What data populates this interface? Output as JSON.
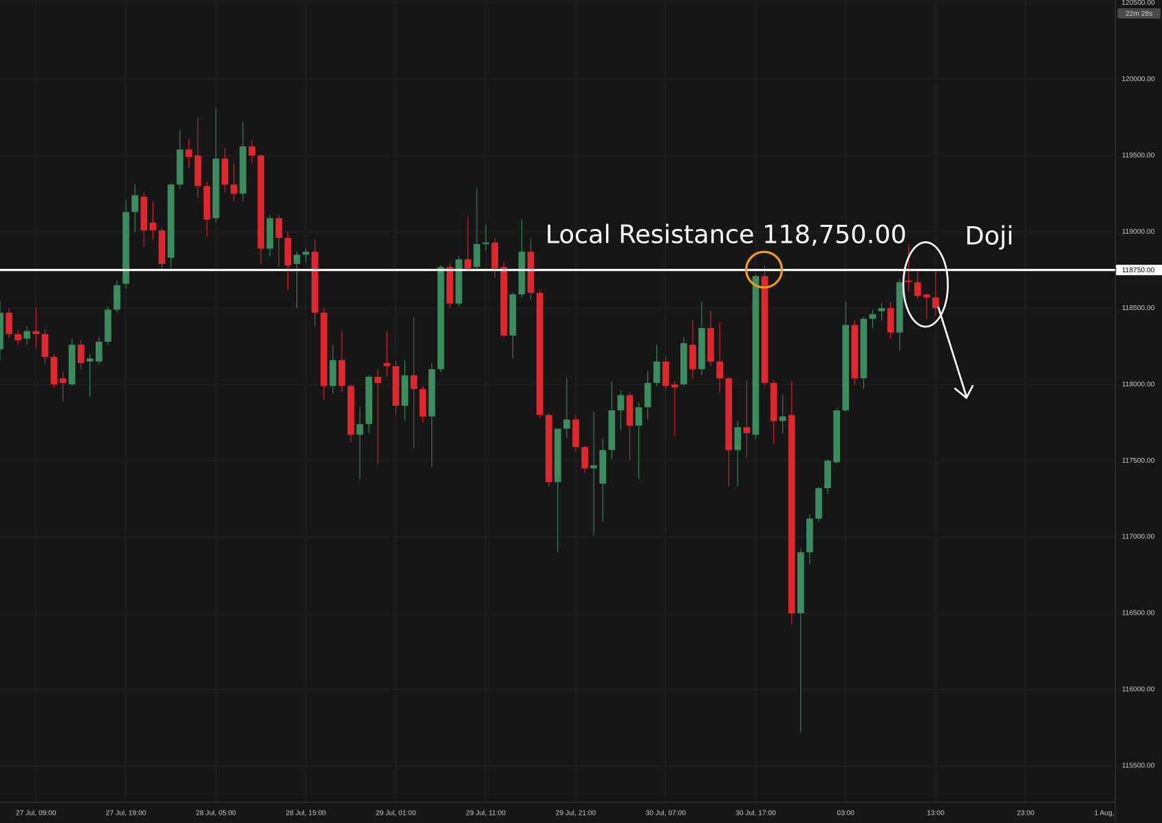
{
  "chart_data": {
    "type": "candlestick",
    "x": [
      "27 Jul, 05:00",
      "27 Jul, 06:00",
      "27 Jul, 07:00",
      "27 Jul, 08:00",
      "27 Jul, 09:00",
      "27 Jul, 10:00",
      "27 Jul, 11:00",
      "27 Jul, 12:00",
      "27 Jul, 13:00",
      "27 Jul, 14:00",
      "27 Jul, 15:00",
      "27 Jul, 16:00",
      "27 Jul, 17:00",
      "27 Jul, 18:00",
      "27 Jul, 19:00",
      "27 Jul, 20:00",
      "27 Jul, 21:00",
      "27 Jul, 22:00",
      "27 Jul, 23:00",
      "28 Jul, 00:00",
      "28 Jul, 01:00",
      "28 Jul, 02:00",
      "28 Jul, 03:00",
      "28 Jul, 04:00",
      "28 Jul, 05:00",
      "28 Jul, 06:00",
      "28 Jul, 07:00",
      "28 Jul, 08:00",
      "28 Jul, 09:00",
      "28 Jul, 10:00",
      "28 Jul, 11:00",
      "28 Jul, 12:00",
      "28 Jul, 13:00",
      "28 Jul, 14:00",
      "28 Jul, 15:00",
      "28 Jul, 16:00",
      "28 Jul, 17:00",
      "28 Jul, 18:00",
      "28 Jul, 19:00",
      "28 Jul, 20:00",
      "28 Jul, 21:00",
      "28 Jul, 22:00",
      "28 Jul, 23:00",
      "29 Jul, 00:00",
      "29 Jul, 01:00",
      "29 Jul, 02:00",
      "29 Jul, 03:00",
      "29 Jul, 04:00",
      "29 Jul, 05:00",
      "29 Jul, 06:00",
      "29 Jul, 07:00",
      "29 Jul, 08:00",
      "29 Jul, 09:00",
      "29 Jul, 10:00",
      "29 Jul, 11:00",
      "29 Jul, 12:00",
      "29 Jul, 13:00",
      "29 Jul, 14:00",
      "29 Jul, 15:00",
      "29 Jul, 16:00",
      "29 Jul, 17:00",
      "29 Jul, 18:00",
      "29 Jul, 19:00",
      "29 Jul, 20:00",
      "29 Jul, 21:00",
      "29 Jul, 22:00",
      "29 Jul, 23:00",
      "30 Jul, 00:00",
      "30 Jul, 01:00",
      "30 Jul, 02:00",
      "30 Jul, 03:00",
      "30 Jul, 04:00",
      "30 Jul, 05:00",
      "30 Jul, 06:00",
      "30 Jul, 07:00",
      "30 Jul, 08:00",
      "30 Jul, 09:00",
      "30 Jul, 10:00",
      "30 Jul, 11:00",
      "30 Jul, 12:00",
      "30 Jul, 13:00",
      "30 Jul, 14:00",
      "30 Jul, 15:00",
      "30 Jul, 16:00",
      "30 Jul, 17:00",
      "30 Jul, 18:00",
      "30 Jul, 19:00",
      "30 Jul, 20:00",
      "30 Jul, 21:00",
      "30 Jul, 22:00",
      "30 Jul, 23:00",
      "31 Jul, 00:00",
      "31 Jul, 01:00",
      "31 Jul, 02:00",
      "31 Jul, 03:00",
      "31 Jul, 04:00",
      "31 Jul, 05:00",
      "31 Jul, 06:00",
      "31 Jul, 07:00",
      "31 Jul, 08:00",
      "31 Jul, 09:00",
      "31 Jul, 10:00",
      "31 Jul, 11:00",
      "31 Jul, 12:00",
      "31 Jul, 13:00",
      "31 Jul, 14:00",
      "31 Jul, 15:00",
      "31 Jul, 16:00",
      "31 Jul, 17:00",
      "31 Jul, 18:00",
      "31 Jul, 19:00",
      "31 Jul, 20:00",
      "31 Jul, 21:00",
      "31 Jul, 22:00",
      "31 Jul, 23:00",
      "1 Aug, 00:00",
      "1 Aug, 01:00",
      "1 Aug, 02:00",
      "1 Aug, 03:00",
      "1 Aug, 04:00",
      "1 Aug, 05:00",
      "1 Aug, 06:00",
      "1 Aug, 07:00",
      "1 Aug, 08:00",
      "1 Aug, 09:00"
    ],
    "open": [
      118230,
      118470,
      118330,
      118300,
      118350,
      118330,
      118180,
      118040,
      118000,
      118260,
      118150,
      118150,
      118280,
      118490,
      118660,
      119130,
      119230,
      119060,
      119010,
      118830,
      119310,
      119540,
      119500,
      119300,
      119090,
      119480,
      119310,
      119250,
      119560,
      119500,
      118890,
      119090,
      118960,
      118790,
      118850,
      118870,
      118470,
      117990,
      118160,
      117990,
      117670,
      117740,
      118050,
      118140,
      118120,
      117860,
      118060,
      117970,
      117790,
      118100,
      118770,
      118530,
      118820,
      118770,
      118920,
      118930,
      118770,
      118320,
      118590,
      118870,
      118600,
      117800,
      117360,
      117710,
      117770,
      117590,
      117450,
      117350,
      117570,
      117830,
      117930,
      117730,
      117850,
      118010,
      118150,
      118000,
      118000,
      118260,
      118100,
      118370,
      118150,
      118040,
      117570,
      117720,
      117670,
      118710,
      118010,
      117760,
      117800,
      116500,
      116900,
      117120,
      117320,
      117490,
      117830,
      118390,
      118040,
      118430,
      118480,
      118500,
      118340,
      118680,
      118670,
      118590,
      118570,
      null,
      null,
      null,
      null,
      null,
      null,
      null,
      null,
      null,
      null,
      null,
      null,
      null,
      null,
      null,
      null,
      null,
      null,
      null,
      null
    ],
    "high": [
      118550,
      118500,
      118360,
      118380,
      118500,
      118360,
      118200,
      118080,
      118300,
      118290,
      118200,
      118310,
      118510,
      118680,
      119210,
      119310,
      119260,
      119200,
      119030,
      119320,
      119670,
      119610,
      119750,
      119330,
      119810,
      119550,
      119450,
      119720,
      119600,
      119510,
      119110,
      119110,
      119000,
      118870,
      118890,
      118950,
      118500,
      118260,
      118350,
      118000,
      117850,
      118060,
      118100,
      118350,
      118150,
      118160,
      118440,
      117990,
      118140,
      118780,
      118800,
      118840,
      119100,
      119290,
      119050,
      118960,
      118800,
      118600,
      119080,
      118960,
      118620,
      117810,
      117710,
      118040,
      117800,
      117600,
      117820,
      117650,
      118020,
      117960,
      117950,
      117880,
      118090,
      118260,
      118180,
      118020,
      118310,
      118420,
      118540,
      118480,
      118410,
      118050,
      117760,
      118030,
      118720,
      118780,
      118030,
      117930,
      118020,
      116920,
      117150,
      117330,
      117510,
      117840,
      118540,
      118420,
      118440,
      118490,
      118530,
      118540,
      118690,
      118920,
      118760,
      118600,
      118750,
      null,
      null,
      null,
      null,
      null,
      null,
      null,
      null,
      null,
      null,
      null,
      null,
      null,
      null,
      null,
      null,
      null,
      null,
      null,
      null
    ],
    "low": [
      118160,
      118300,
      118260,
      118260,
      118240,
      118130,
      117980,
      117890,
      117990,
      118100,
      117920,
      118130,
      118260,
      118470,
      118630,
      119000,
      118900,
      118950,
      118760,
      118760,
      119280,
      119420,
      119220,
      118970,
      119060,
      119260,
      119200,
      119200,
      119450,
      118790,
      118840,
      118770,
      118620,
      118500,
      118800,
      118380,
      117900,
      117940,
      117950,
      117620,
      117380,
      117680,
      117480,
      118050,
      117800,
      117760,
      117580,
      117750,
      117460,
      118080,
      118500,
      118510,
      118740,
      118750,
      118880,
      118700,
      118310,
      118170,
      118570,
      118550,
      117780,
      117330,
      116900,
      117650,
      117560,
      117420,
      117010,
      117100,
      117510,
      117700,
      117500,
      117380,
      117770,
      117990,
      117960,
      117660,
      117990,
      118040,
      118060,
      118120,
      117950,
      117330,
      117330,
      117520,
      117640,
      117990,
      117610,
      117680,
      116430,
      115720,
      116820,
      117100,
      117280,
      117480,
      117820,
      118000,
      117970,
      118370,
      118420,
      118300,
      118220,
      118610,
      118560,
      118430,
      118450,
      null,
      null,
      null,
      null,
      null,
      null,
      null,
      null,
      null,
      null,
      null,
      null,
      null,
      null,
      null,
      null,
      null,
      null,
      null,
      null
    ],
    "close": [
      118470,
      118330,
      118290,
      118350,
      118330,
      118180,
      118000,
      118010,
      118260,
      118140,
      118170,
      118280,
      118490,
      118650,
      119130,
      119240,
      119010,
      119010,
      118790,
      119310,
      119540,
      119490,
      119300,
      119080,
      119480,
      119310,
      119250,
      119560,
      119500,
      118890,
      119090,
      118960,
      118780,
      118850,
      118870,
      118470,
      117990,
      118160,
      117990,
      117670,
      117740,
      118050,
      118010,
      118120,
      117860,
      118060,
      117970,
      117790,
      118100,
      118770,
      118530,
      118820,
      118760,
      118920,
      118930,
      118760,
      118320,
      118590,
      118870,
      118600,
      117800,
      117360,
      117710,
      117770,
      117590,
      117450,
      117470,
      117570,
      117830,
      117930,
      117730,
      117850,
      118010,
      118150,
      117990,
      117980,
      118270,
      118100,
      118370,
      118150,
      118040,
      117570,
      117720,
      117680,
      118710,
      118010,
      117760,
      117790,
      116500,
      116900,
      117120,
      117320,
      117500,
      117830,
      118390,
      118040,
      118430,
      118460,
      118500,
      118340,
      118670,
      118670,
      118580,
      118570,
      118500,
      null,
      null,
      null,
      null,
      null,
      null,
      null,
      null,
      null,
      null,
      null,
      null,
      null,
      null,
      null,
      null,
      null,
      null,
      null,
      null
    ],
    "up_color": "#3a8c5f",
    "down_color": "#e0272d",
    "ylim": [
      115262,
      120519
    ],
    "yticks": [
      {
        "value": 115500,
        "label": "115500.00"
      },
      {
        "value": 116000,
        "label": "116000.00"
      },
      {
        "value": 116500,
        "label": "116500.00"
      },
      {
        "value": 117000,
        "label": "117000.00"
      },
      {
        "value": 117500,
        "label": "117500.00"
      },
      {
        "value": 118000,
        "label": "118000.00"
      },
      {
        "value": 118500,
        "label": "118500.00"
      },
      {
        "value": 119000,
        "label": "119000.00"
      },
      {
        "value": 119500,
        "label": "119500.00"
      },
      {
        "value": 120000,
        "label": "120000.00"
      },
      {
        "value": 120500,
        "label": "120500.00"
      }
    ],
    "xticks": [
      "27 Jul, 09:00",
      "27 Jul, 19:00",
      "28 Jul, 05:00",
      "28 Jul, 15:00",
      "29 Jul, 01:00",
      "29 Jul, 11:00",
      "29 Jul, 21:00",
      "30 Jul, 07:00",
      "30 Jul, 17:00",
      {
        "value": "31 Jul, 03:00",
        "label": "03:00"
      },
      {
        "value": "31 Jul, 13:00",
        "label": "13:00"
      },
      {
        "value": "31 Jul, 23:00",
        "label": "23:00"
      },
      {
        "value": "1 Aug, 09:00",
        "label": "1 Aug,"
      }
    ],
    "grid": true,
    "resistance": {
      "value": 118750,
      "label": "118750.00"
    },
    "annotations": [
      {
        "text": "Local Resistance 118,750.00"
      },
      {
        "text": "Doji"
      }
    ],
    "countdown": "22m 28s"
  }
}
